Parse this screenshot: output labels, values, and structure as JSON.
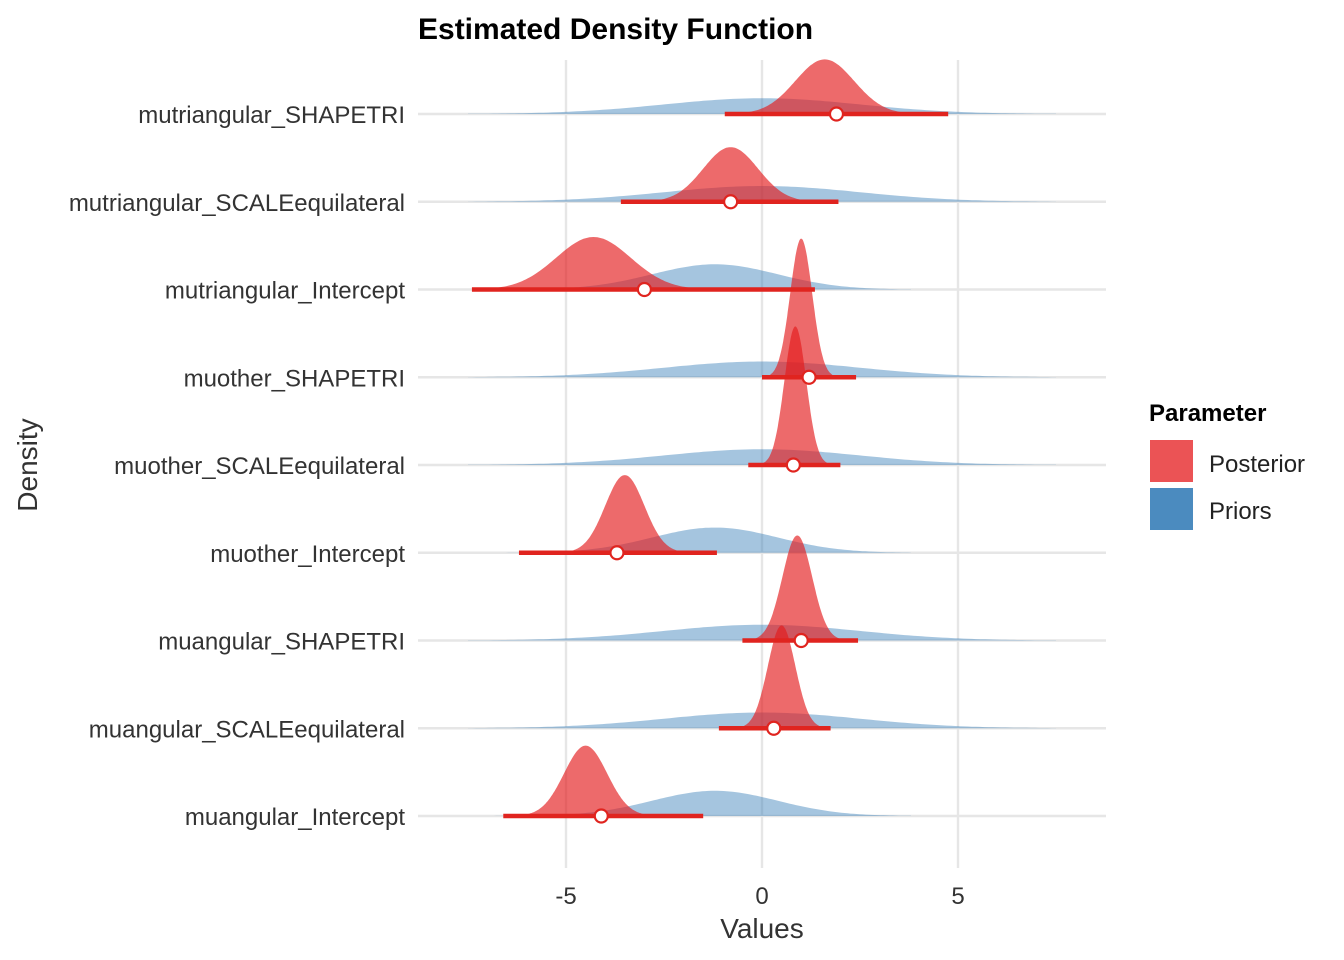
{
  "chart_data": {
    "type": "ridgeline",
    "title": "Estimated Density Function",
    "xlabel": "Values",
    "ylabel": "Density",
    "xlim": [
      -8.8,
      8.8
    ],
    "x_ticks": [
      -5,
      0,
      5
    ],
    "x_tick_labels": [
      "-5",
      "0",
      "5"
    ],
    "grid": true,
    "legend": {
      "title": "Parameter",
      "placement": "right",
      "entries": [
        {
          "name": "Posterior",
          "color": "#E41A1C"
        },
        {
          "name": "Priors",
          "color": "#377EB8"
        }
      ]
    },
    "colors": {
      "posterior_fill": "#E41A1C",
      "posterior_interval": "#E0241F",
      "prior_fill": "#377EB8",
      "grid": "#E6E6E6"
    },
    "categories": [
      "mutriangular_SHAPETRI",
      "mutriangular_SCALEequilateral",
      "mutriangular_Intercept",
      "muother_SHAPETRI",
      "muother_SCALEequilateral",
      "muother_Intercept",
      "muangular_SHAPETRI",
      "muangular_SCALEequilateral",
      "muangular_Intercept"
    ],
    "series": [
      {
        "name": "Posterior",
        "points": [
          {
            "category": "mutriangular_SHAPETRI",
            "mean": 1.9,
            "interval": [
              -0.95,
              4.75
            ],
            "mode": 1.6,
            "sd": 0.75,
            "peak_height": 0.52
          },
          {
            "category": "mutriangular_SCALEequilateral",
            "mean": -0.8,
            "interval": [
              -3.6,
              1.95
            ],
            "mode": -0.8,
            "sd": 0.7,
            "peak_height": 0.52
          },
          {
            "category": "mutriangular_Intercept",
            "mean": -3.0,
            "interval": [
              -7.4,
              1.35
            ],
            "mode": -4.3,
            "sd": 0.95,
            "peak_height": 0.5
          },
          {
            "category": "muother_SHAPETRI",
            "mean": 1.2,
            "interval": [
              0.0,
              2.4
            ],
            "mode": 1.0,
            "sd": 0.28,
            "peak_height": 1.32
          },
          {
            "category": "muother_SCALEequilateral",
            "mean": 0.8,
            "interval": [
              -0.35,
              2.0
            ],
            "mode": 0.85,
            "sd": 0.28,
            "peak_height": 1.32
          },
          {
            "category": "muother_Intercept",
            "mean": -3.7,
            "interval": [
              -6.2,
              -1.15
            ],
            "mode": -3.5,
            "sd": 0.5,
            "peak_height": 0.74
          },
          {
            "category": "muangular_SHAPETRI",
            "mean": 1.0,
            "interval": [
              -0.5,
              2.45
            ],
            "mode": 0.9,
            "sd": 0.38,
            "peak_height": 1.0
          },
          {
            "category": "muangular_SCALEequilateral",
            "mean": 0.3,
            "interval": [
              -1.1,
              1.75
            ],
            "mode": 0.5,
            "sd": 0.35,
            "peak_height": 0.98
          },
          {
            "category": "muangular_Intercept",
            "mean": -4.1,
            "interval": [
              -6.6,
              -1.5
            ],
            "mode": -4.5,
            "sd": 0.55,
            "peak_height": 0.67
          }
        ]
      },
      {
        "name": "Priors",
        "points": [
          {
            "category": "mutriangular_SHAPETRI",
            "center": 0.0,
            "sd": 2.5,
            "range": [
              -7.5,
              7.5
            ],
            "peak_height": 0.15
          },
          {
            "category": "mutriangular_SCALEequilateral",
            "center": 0.0,
            "sd": 2.5,
            "range": [
              -7.5,
              7.5
            ],
            "peak_height": 0.15
          },
          {
            "category": "mutriangular_Intercept",
            "center": -1.2,
            "sd": 1.6,
            "range": [
              -7.0,
              3.8
            ],
            "peak_height": 0.24
          },
          {
            "category": "muother_SHAPETRI",
            "center": 0.0,
            "sd": 2.5,
            "range": [
              -7.5,
              7.5
            ],
            "peak_height": 0.15
          },
          {
            "category": "muother_SCALEequilateral",
            "center": 0.0,
            "sd": 2.5,
            "range": [
              -7.5,
              7.5
            ],
            "peak_height": 0.15
          },
          {
            "category": "muother_Intercept",
            "center": -1.2,
            "sd": 1.6,
            "range": [
              -7.0,
              3.8
            ],
            "peak_height": 0.24
          },
          {
            "category": "muangular_SHAPETRI",
            "center": 0.0,
            "sd": 2.5,
            "range": [
              -7.5,
              7.5
            ],
            "peak_height": 0.15
          },
          {
            "category": "muangular_SCALEequilateral",
            "center": 0.0,
            "sd": 2.5,
            "range": [
              -7.5,
              7.5
            ],
            "peak_height": 0.15
          },
          {
            "category": "muangular_Intercept",
            "center": -1.2,
            "sd": 1.6,
            "range": [
              -7.0,
              3.8
            ],
            "peak_height": 0.24
          }
        ]
      }
    ]
  }
}
